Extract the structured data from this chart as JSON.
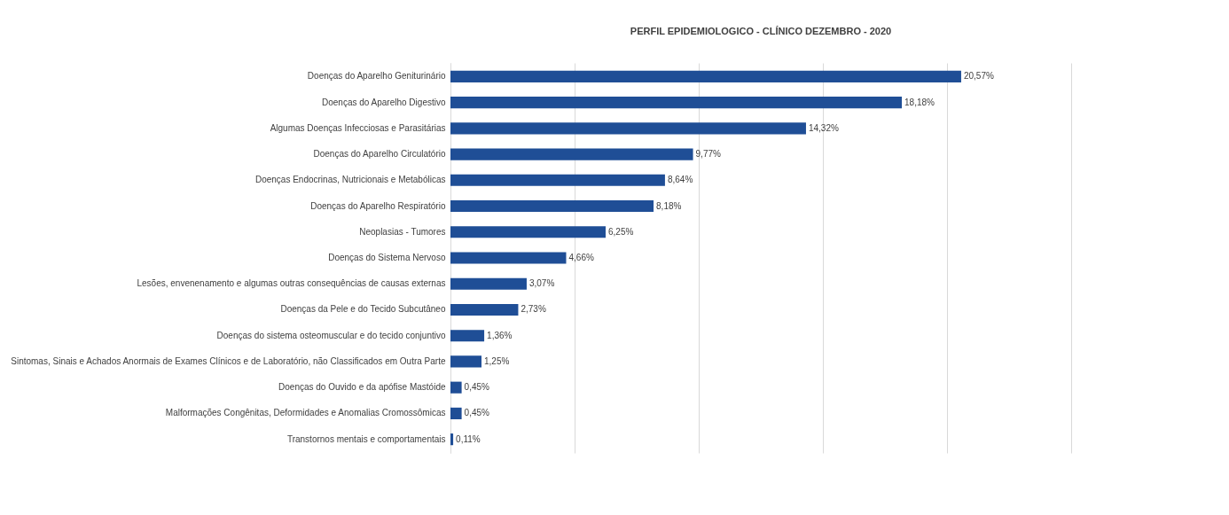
{
  "chart_data": {
    "type": "bar",
    "orientation": "horizontal",
    "title": "PERFIL EPIDEMIOLOGICO - CLÍNICO DEZEMBRO - 2020",
    "categories": [
      "Doenças do Aparelho Geniturinário",
      "Doenças do Aparelho Digestivo",
      "Algumas Doenças Infecciosas e Parasitárias",
      "Doenças do Aparelho Circulatório",
      "Doenças Endocrinas, Nutricionais e Metabólicas",
      "Doenças do Aparelho Respiratório",
      "Neoplasias - Tumores",
      "Doenças do Sistema Nervoso",
      "Lesões, envenenamento e algumas outras consequências de causas externas",
      "Doenças da Pele e do Tecido Subcutâneo",
      "Doenças do sistema osteomuscular e do tecido conjuntivo",
      "Sintomas, Sinais e Achados Anormais de Exames Clínicos e de Laboratório, não Classificados em Outra Parte",
      "Doenças do Ouvido e da apófise Mastóide",
      "Malformações Congênitas, Deformidades e Anomalias Cromossômicas",
      "Transtornos mentais e comportamentais"
    ],
    "values": [
      20.57,
      18.18,
      14.32,
      9.77,
      8.64,
      8.18,
      6.25,
      4.66,
      3.07,
      2.73,
      1.36,
      1.25,
      0.45,
      0.45,
      0.11
    ],
    "value_labels": [
      "20,57%",
      "18,18%",
      "14,32%",
      "9,77%",
      "8,64%",
      "8,18%",
      "6,25%",
      "4,66%",
      "3,07%",
      "2,73%",
      "1,36%",
      "1,25%",
      "0,45%",
      "0,45%",
      "0,11%"
    ],
    "color": "#1f4e96",
    "xlim": [
      0,
      25
    ],
    "xticks": [
      {
        "value": 0,
        "label": null
      },
      {
        "value": 5,
        "label": null
      },
      {
        "value": 10,
        "label": null
      },
      {
        "value": 15,
        "label": null
      },
      {
        "value": 20,
        "label": null
      },
      {
        "value": 25,
        "label": null
      }
    ],
    "tick_labels": "y",
    "grid": "x"
  }
}
